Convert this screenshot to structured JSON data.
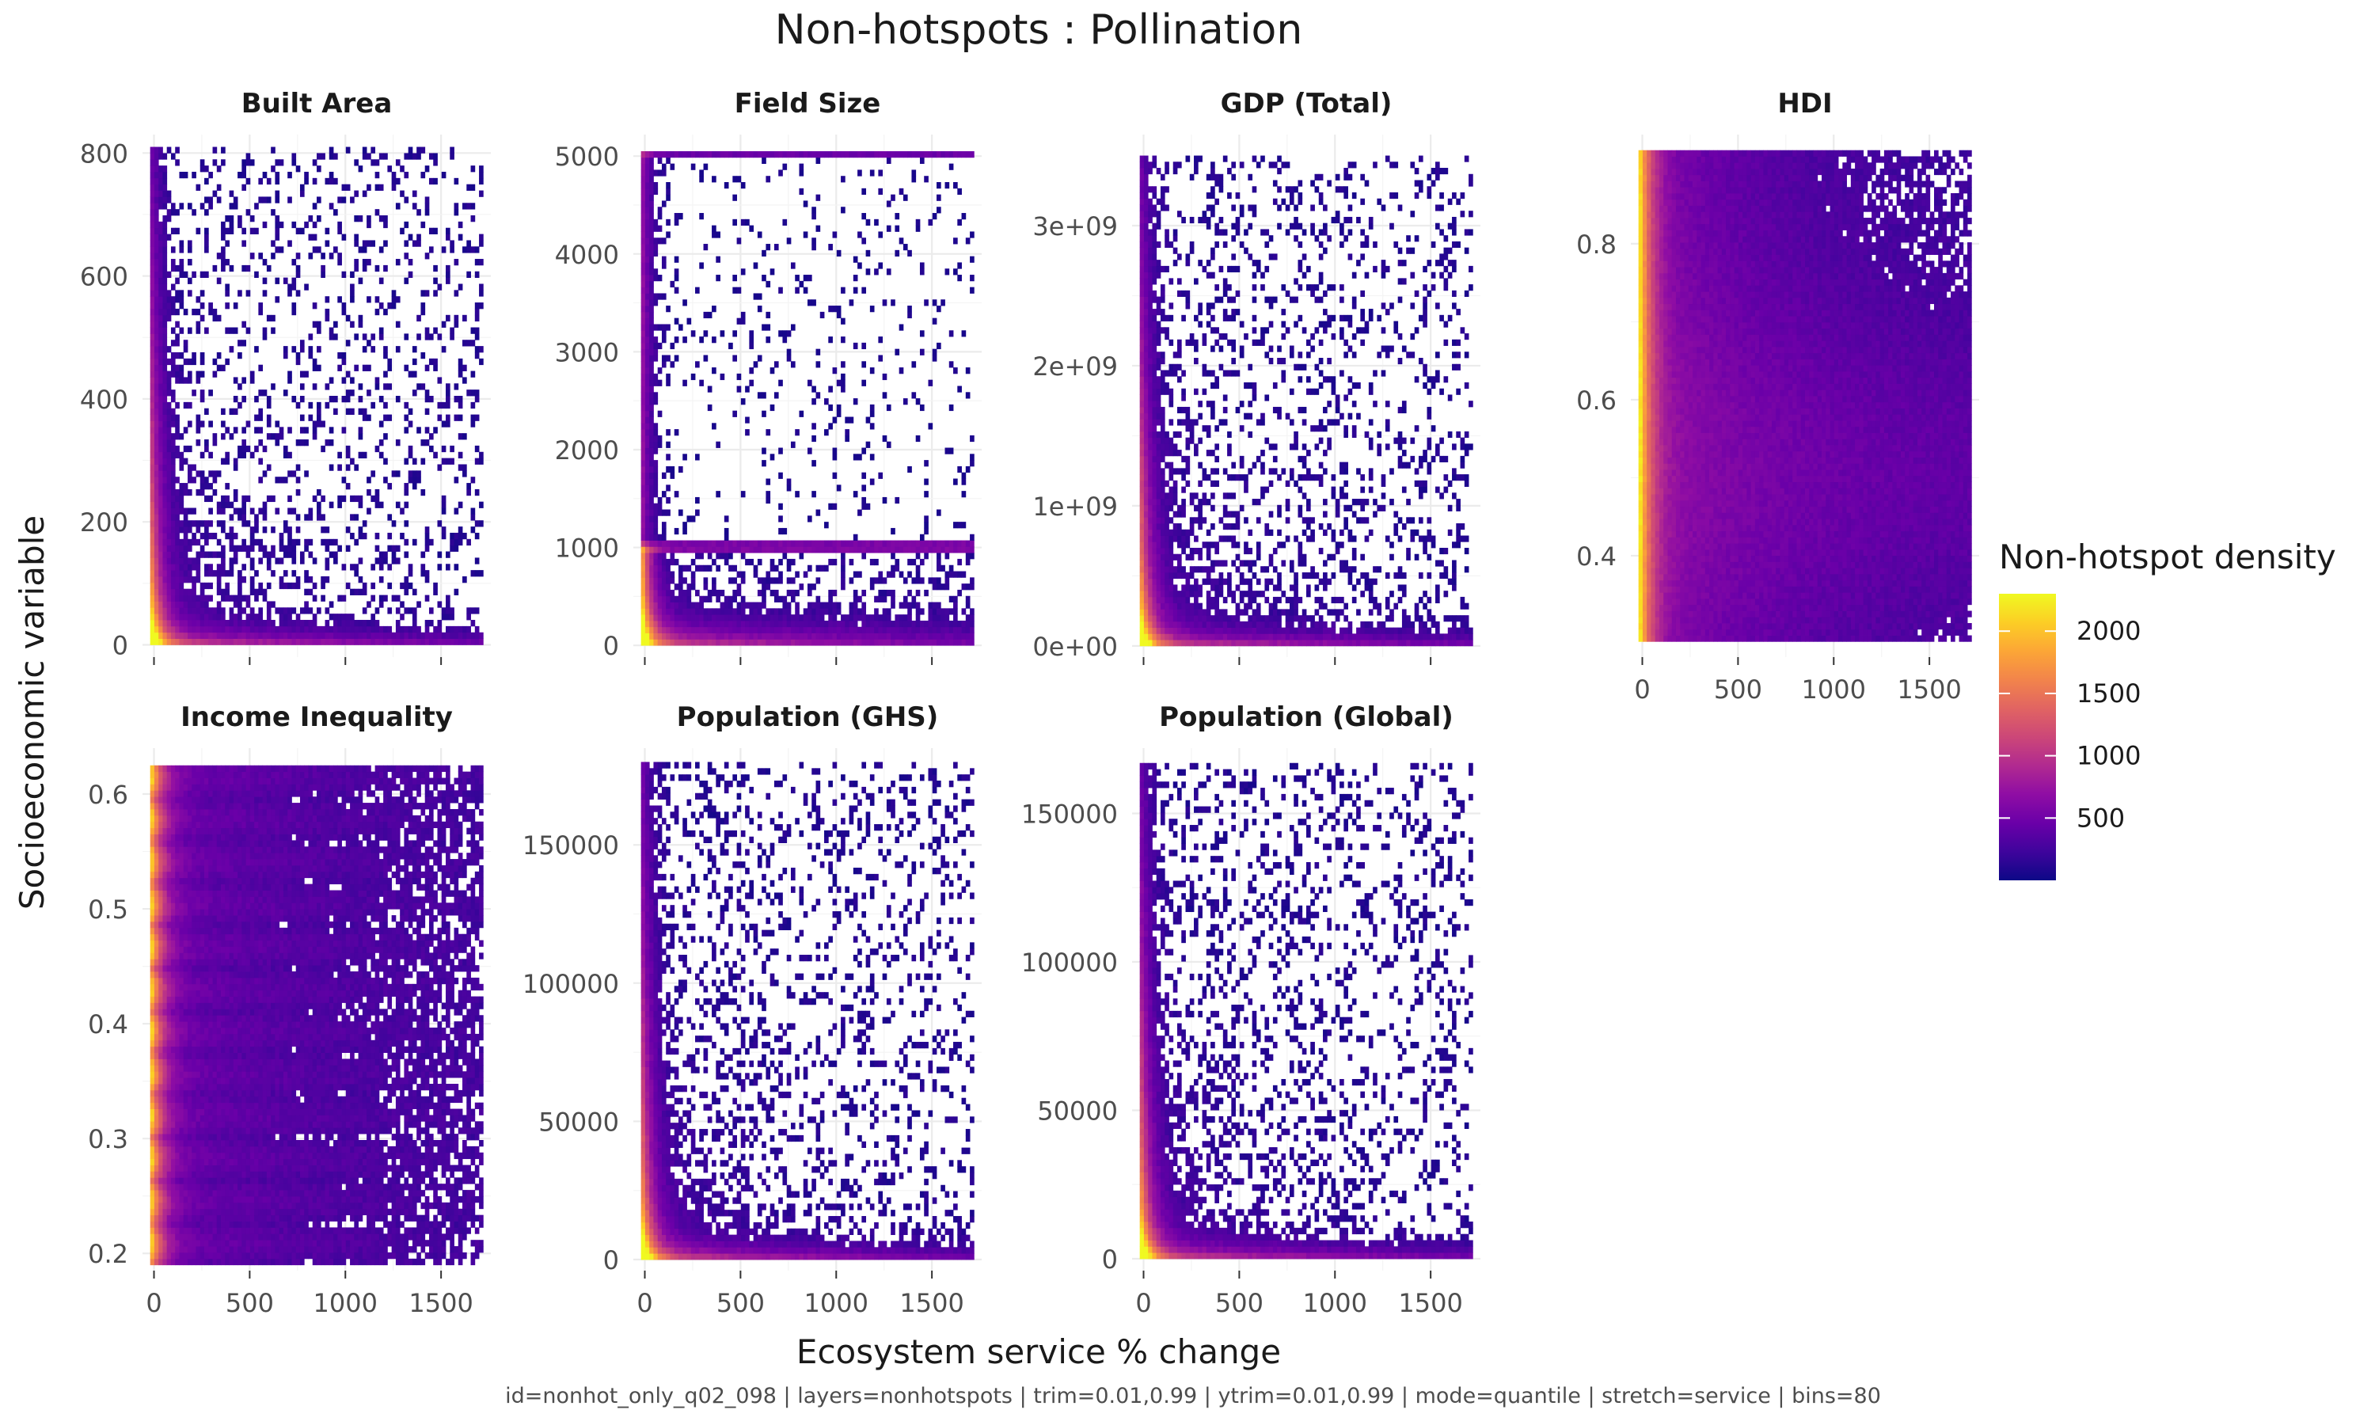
{
  "figure": {
    "title": "Non-hotspots : Pollination",
    "xlabel": "Ecosystem service % change",
    "ylabel": "Socioeconomic variable",
    "caption": "id=nonhot_only_q02_098 | layers=nonhotspots | trim=0.01,0.99 | ytrim=0.01,0.99 | mode=quantile | stretch=service | bins=80"
  },
  "legend": {
    "title": "Non-hotspot density",
    "ticks": [
      "2000",
      "1500",
      "1000",
      "500"
    ],
    "tick_values": [
      2000,
      1500,
      1000,
      500
    ],
    "range": [
      0,
      2300
    ],
    "colors": [
      "#0d0887",
      "#3f049c",
      "#6a00a8",
      "#8f0da4",
      "#b12a90",
      "#cc4778",
      "#e16462",
      "#f2844b",
      "#fca636",
      "#fcce25",
      "#f0f921"
    ],
    "placement": "right"
  },
  "colors": {
    "text": "#1a1a1a",
    "tick_text": "#4d4d4d",
    "grid_major": "#ebebeb",
    "grid_minor": "#f4f4f4",
    "caption": "#4d4d4d"
  },
  "chart_data": [
    {
      "type": "heatmap",
      "title": "Built Area",
      "x_ticks": [
        0,
        500,
        1000,
        1500
      ],
      "xlim": [
        -60,
        1760
      ],
      "y_ticks": [
        0,
        200,
        400,
        600,
        800
      ],
      "y_tick_labels": [
        "0",
        "200",
        "400",
        "600",
        "800"
      ],
      "ylim": [
        -20,
        830
      ],
      "data_range": {
        "x": [
          -20,
          1720
        ],
        "y": [
          0,
          810
        ]
      },
      "pattern": "l_shape",
      "bins": 80,
      "grid": true
    },
    {
      "type": "heatmap",
      "title": "Field Size",
      "x_ticks": [
        0,
        500,
        1000,
        1500
      ],
      "xlim": [
        -60,
        1760
      ],
      "y_ticks": [
        0,
        1000,
        2000,
        3000,
        4000,
        5000
      ],
      "y_tick_labels": [
        "0",
        "1000",
        "2000",
        "3000",
        "4000",
        "5000"
      ],
      "ylim": [
        -120,
        5220
      ],
      "data_range": {
        "x": [
          -20,
          1720
        ],
        "y": [
          0,
          5050
        ]
      },
      "pattern": "field_size",
      "bins": 80,
      "grid": true
    },
    {
      "type": "heatmap",
      "title": "GDP (Total)",
      "x_ticks": [
        0,
        500,
        1000,
        1500
      ],
      "xlim": [
        -60,
        1760
      ],
      "y_ticks": [
        0,
        1000000000,
        2000000000,
        3000000000
      ],
      "y_tick_labels": [
        "0e+00",
        "1e+09",
        "2e+09",
        "3e+09"
      ],
      "ylim": [
        -80000000,
        3650000000
      ],
      "data_range": {
        "x": [
          -20,
          1720
        ],
        "y": [
          0,
          3500000000
        ]
      },
      "pattern": "l_shape",
      "bins": 80,
      "grid": true
    },
    {
      "type": "heatmap",
      "title": "HDI",
      "x_ticks": [
        0,
        500,
        1000,
        1500
      ],
      "x_tick_labels_shown": true,
      "xlim": [
        -60,
        1760
      ],
      "y_ticks": [
        0.4,
        0.6,
        0.8
      ],
      "y_tick_labels": [
        "0.4",
        "0.6",
        "0.8"
      ],
      "ylim": [
        0.27,
        0.94
      ],
      "data_range": {
        "x": [
          -20,
          1720
        ],
        "y": [
          0.29,
          0.92
        ]
      },
      "pattern": "uniform",
      "bins": 80,
      "grid": true
    },
    {
      "type": "heatmap",
      "title": "Income Inequality",
      "x_ticks": [
        0,
        500,
        1000,
        1500
      ],
      "xlim": [
        -60,
        1760
      ],
      "y_ticks": [
        0.2,
        0.3,
        0.4,
        0.5,
        0.6
      ],
      "y_tick_labels": [
        "0.2",
        "0.3",
        "0.4",
        "0.5",
        "0.6"
      ],
      "ylim": [
        0.185,
        0.64
      ],
      "data_range": {
        "x": [
          -20,
          1720
        ],
        "y": [
          0.19,
          0.625
        ]
      },
      "pattern": "banded",
      "bins": 80,
      "grid": true
    },
    {
      "type": "heatmap",
      "title": "Population (GHS)",
      "x_ticks": [
        0,
        500,
        1000,
        1500
      ],
      "xlim": [
        -60,
        1760
      ],
      "y_ticks": [
        0,
        50000,
        100000,
        150000
      ],
      "y_tick_labels": [
        "0",
        "50000",
        "100000",
        "150000"
      ],
      "ylim": [
        -4000,
        185000
      ],
      "data_range": {
        "x": [
          -20,
          1720
        ],
        "y": [
          0,
          180000
        ]
      },
      "pattern": "l_shape",
      "bins": 80,
      "grid": true
    },
    {
      "type": "heatmap",
      "title": "Population (Global)",
      "x_ticks": [
        0,
        500,
        1000,
        1500
      ],
      "xlim": [
        -60,
        1760
      ],
      "y_ticks": [
        0,
        50000,
        100000,
        150000
      ],
      "y_tick_labels": [
        "0",
        "50000",
        "100000",
        "150000"
      ],
      "ylim": [
        -4000,
        172000
      ],
      "data_range": {
        "x": [
          -20,
          1720
        ],
        "y": [
          0,
          167000
        ]
      },
      "pattern": "l_shape",
      "bins": 80,
      "grid": true
    }
  ]
}
